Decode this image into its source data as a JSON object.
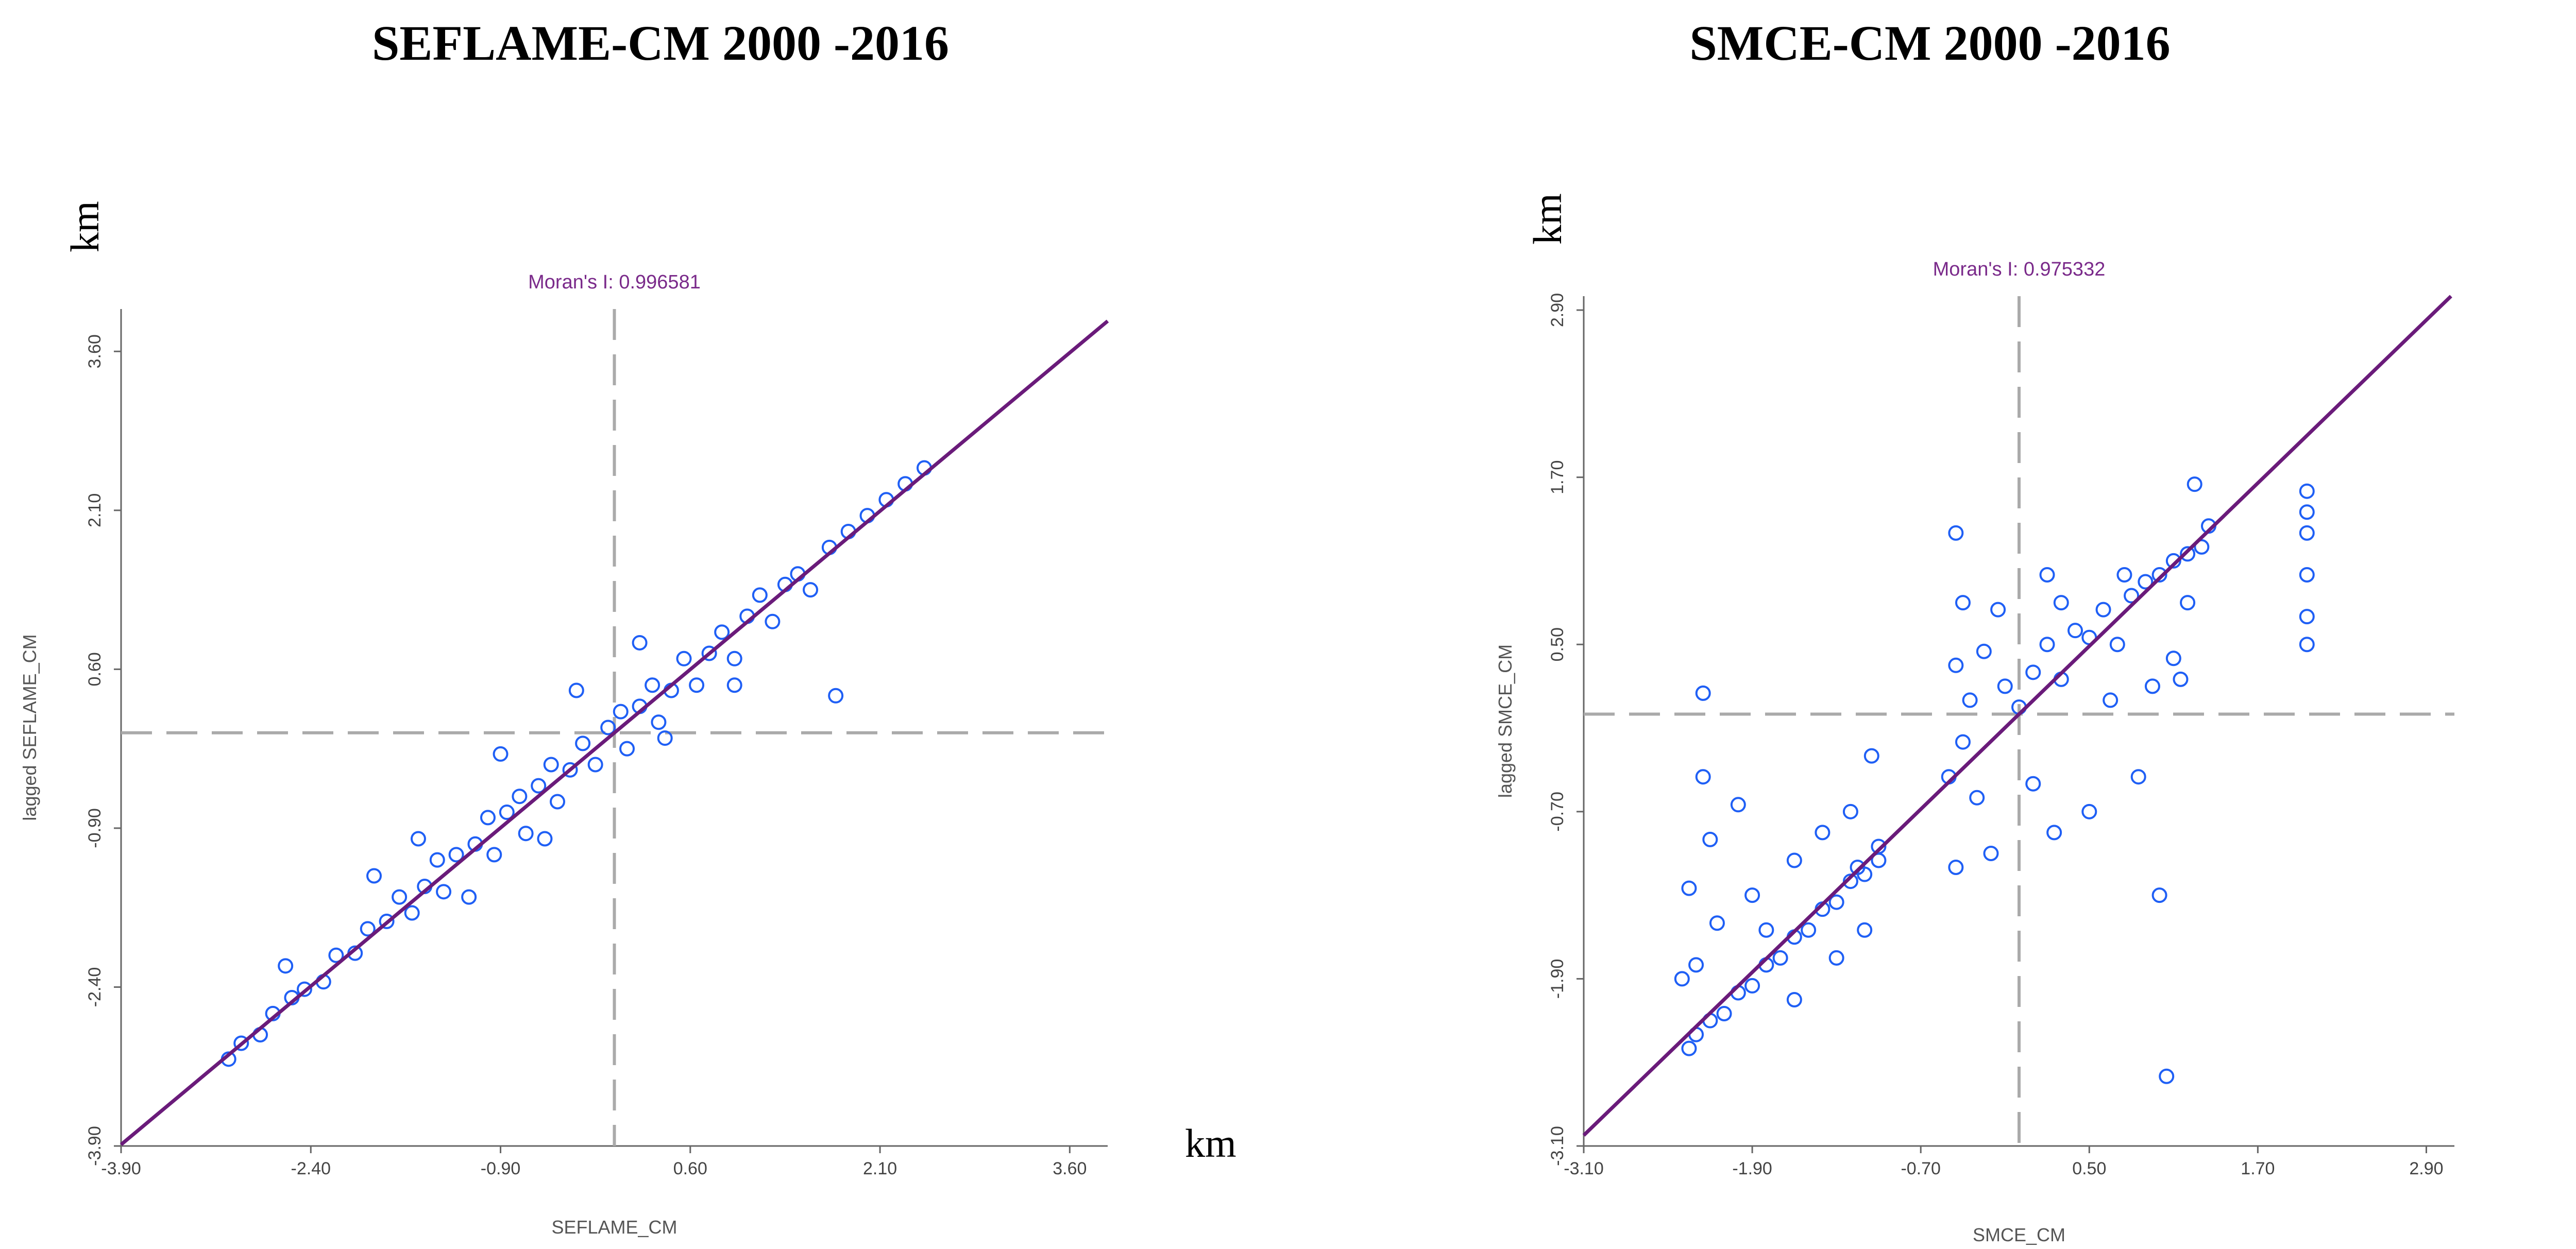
{
  "chart_data": [
    {
      "type": "scatter",
      "title": "SEFLAME-CM 2000 -2016",
      "xlabel": "SEFLAME_CM",
      "ylabel": "lagged SEFLAME_CM",
      "x_unit": "km",
      "y_unit": "km",
      "annotation": "Moran's I: 0.996581",
      "xlim": [
        -3.9,
        3.9
      ],
      "ylim": [
        -3.9,
        4.0
      ],
      "xticks": [
        -3.9,
        -2.4,
        -0.9,
        0.6,
        2.1,
        3.6
      ],
      "yticks": [
        -3.9,
        -2.4,
        -0.9,
        0.6,
        2.1,
        3.6
      ],
      "xtick_labels": [
        "-3.90",
        "-2.40",
        "-0.90",
        "0.60",
        "2.10",
        "3.60"
      ],
      "ytick_labels": [
        "-3.90",
        "-2.40",
        "-0.90",
        "0.60",
        "2.10",
        "3.60"
      ],
      "regression_slope": 0.996581,
      "mean_lines": {
        "x": 0.0,
        "y": 0.0
      },
      "point_color": "#1f5ff5",
      "line_color": "#6a1b7a",
      "points": [
        [
          -3.05,
          -3.08
        ],
        [
          -2.95,
          -2.93
        ],
        [
          -2.8,
          -2.85
        ],
        [
          -2.7,
          -2.65
        ],
        [
          -2.55,
          -2.5
        ],
        [
          -2.45,
          -2.42
        ],
        [
          -2.3,
          -2.35
        ],
        [
          -2.2,
          -2.1
        ],
        [
          -2.05,
          -2.08
        ],
        [
          -1.95,
          -1.85
        ],
        [
          -1.8,
          -1.78
        ],
        [
          -1.7,
          -1.55
        ],
        [
          -1.6,
          -1.7
        ],
        [
          -1.5,
          -1.45
        ],
        [
          -1.4,
          -1.2
        ],
        [
          -1.35,
          -1.5
        ],
        [
          -1.25,
          -1.15
        ],
        [
          -1.1,
          -1.05
        ],
        [
          -1.0,
          -0.8
        ],
        [
          -0.95,
          -1.15
        ],
        [
          -0.85,
          -0.75
        ],
        [
          -0.75,
          -0.6
        ],
        [
          -0.7,
          -0.95
        ],
        [
          -0.6,
          -0.5
        ],
        [
          -0.5,
          -0.3
        ],
        [
          -0.45,
          -0.65
        ],
        [
          -0.35,
          -0.35
        ],
        [
          -0.25,
          -0.1
        ],
        [
          -0.15,
          -0.3
        ],
        [
          -0.05,
          0.05
        ],
        [
          0.05,
          0.2
        ],
        [
          0.1,
          -0.15
        ],
        [
          0.2,
          0.25
        ],
        [
          0.3,
          0.45
        ],
        [
          0.35,
          0.1
        ],
        [
          0.45,
          0.4
        ],
        [
          0.55,
          0.7
        ],
        [
          0.65,
          0.45
        ],
        [
          0.75,
          0.75
        ],
        [
          0.85,
          0.95
        ],
        [
          0.95,
          0.7
        ],
        [
          1.05,
          1.1
        ],
        [
          1.15,
          1.3
        ],
        [
          1.25,
          1.05
        ],
        [
          1.35,
          1.4
        ],
        [
          1.45,
          1.5
        ],
        [
          1.55,
          1.35
        ],
        [
          1.7,
          1.75
        ],
        [
          1.85,
          1.9
        ],
        [
          2.0,
          2.05
        ],
        [
          2.15,
          2.2
        ],
        [
          2.3,
          2.35
        ],
        [
          2.45,
          2.5
        ],
        [
          1.75,
          0.35
        ],
        [
          -1.9,
          -1.35
        ],
        [
          -1.55,
          -1.0
        ],
        [
          -0.9,
          -0.2
        ],
        [
          -0.3,
          0.4
        ],
        [
          0.2,
          0.85
        ],
        [
          -2.6,
          -2.2
        ],
        [
          -1.15,
          -1.55
        ],
        [
          -0.55,
          -1.0
        ],
        [
          0.4,
          -0.05
        ],
        [
          0.95,
          0.45
        ]
      ]
    },
    {
      "type": "scatter",
      "title": "SMCE-CM 2000 -2016",
      "xlabel": "SMCE_CM",
      "ylabel": "lagged SMCE_CM",
      "x_unit": "km",
      "y_unit": "km",
      "annotation": "Moran's I: 0.975332",
      "xlim": [
        -3.1,
        3.1
      ],
      "ylim": [
        -3.1,
        3.0
      ],
      "xticks": [
        -3.1,
        -1.9,
        -0.7,
        0.5,
        1.7,
        2.9
      ],
      "yticks": [
        -3.1,
        -1.9,
        -0.7,
        0.5,
        1.7,
        2.9
      ],
      "xtick_labels": [
        "-3.10",
        "-1.90",
        "-0.70",
        "0.50",
        "1.70",
        "2.90"
      ],
      "ytick_labels": [
        "-3.10",
        "-1.90",
        "-0.70",
        "0.50",
        "1.70",
        "2.90"
      ],
      "regression_slope": 0.975332,
      "mean_lines": {
        "x": 0.0,
        "y": 0.0
      },
      "point_color": "#1f5ff5",
      "line_color": "#6a1b7a",
      "points": [
        [
          -2.35,
          -2.4
        ],
        [
          -2.3,
          -2.3
        ],
        [
          -2.2,
          -2.2
        ],
        [
          -2.1,
          -2.15
        ],
        [
          -2.0,
          -2.0
        ],
        [
          -1.9,
          -1.95
        ],
        [
          -1.8,
          -1.8
        ],
        [
          -1.7,
          -1.75
        ],
        [
          -1.6,
          -1.6
        ],
        [
          -1.5,
          -1.55
        ],
        [
          -1.4,
          -1.4
        ],
        [
          -1.3,
          -1.35
        ],
        [
          -1.2,
          -1.2
        ],
        [
          -1.1,
          -1.15
        ],
        [
          -1.0,
          -1.05
        ],
        [
          -2.35,
          -1.25
        ],
        [
          -2.3,
          -1.8
        ],
        [
          -2.25,
          -0.45
        ],
        [
          -2.2,
          -0.9
        ],
        [
          -2.15,
          -1.5
        ],
        [
          -1.9,
          -1.3
        ],
        [
          -1.6,
          -1.05
        ],
        [
          -1.4,
          -0.85
        ],
        [
          -1.2,
          -0.7
        ],
        [
          -1.05,
          -0.3
        ],
        [
          -1.0,
          -0.95
        ],
        [
          -1.1,
          -1.55
        ],
        [
          -1.6,
          -2.05
        ],
        [
          -2.0,
          -0.65
        ],
        [
          -1.3,
          -1.75
        ],
        [
          -2.4,
          -1.9
        ],
        [
          -2.25,
          0.15
        ],
        [
          -1.15,
          -1.1
        ],
        [
          -1.8,
          -1.55
        ],
        [
          -0.5,
          -0.45
        ],
        [
          -0.45,
          0.35
        ],
        [
          -0.4,
          -0.2
        ],
        [
          -0.35,
          0.1
        ],
        [
          -0.3,
          -0.6
        ],
        [
          -0.45,
          -1.1
        ],
        [
          -0.4,
          0.8
        ],
        [
          -0.25,
          0.45
        ],
        [
          -0.1,
          0.2
        ],
        [
          0.0,
          0.05
        ],
        [
          0.1,
          0.3
        ],
        [
          0.2,
          0.5
        ],
        [
          0.3,
          0.25
        ],
        [
          0.4,
          0.6
        ],
        [
          0.5,
          0.55
        ],
        [
          0.6,
          0.75
        ],
        [
          0.7,
          0.5
        ],
        [
          0.8,
          0.85
        ],
        [
          0.9,
          0.95
        ],
        [
          1.0,
          1.0
        ],
        [
          1.1,
          1.1
        ],
        [
          1.2,
          1.15
        ],
        [
          1.3,
          1.2
        ],
        [
          1.25,
          1.65
        ],
        [
          1.35,
          1.35
        ],
        [
          0.65,
          0.1
        ],
        [
          0.85,
          -0.45
        ],
        [
          0.95,
          0.2
        ],
        [
          1.0,
          -1.3
        ],
        [
          1.05,
          -2.6
        ],
        [
          0.25,
          -0.85
        ],
        [
          0.5,
          -0.7
        ],
        [
          -0.2,
          -1.0
        ],
        [
          0.1,
          -0.5
        ],
        [
          1.15,
          0.25
        ],
        [
          -0.15,
          0.75
        ],
        [
          0.3,
          0.8
        ],
        [
          1.1,
          0.4
        ],
        [
          0.75,
          1.0
        ],
        [
          0.2,
          1.0
        ],
        [
          -0.45,
          1.3
        ],
        [
          1.2,
          0.8
        ],
        [
          2.05,
          1.6
        ],
        [
          2.05,
          1.3
        ],
        [
          2.05,
          1.0
        ],
        [
          2.05,
          0.7
        ],
        [
          2.05,
          0.5
        ],
        [
          2.05,
          1.45
        ]
      ]
    }
  ]
}
